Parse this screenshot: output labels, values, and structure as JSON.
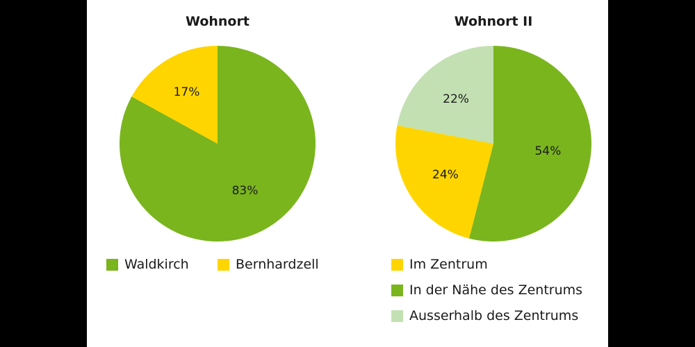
{
  "chart_data": [
    {
      "type": "pie",
      "title": "Wohnort",
      "slices": [
        {
          "label": "Waldkirch",
          "value": 83,
          "value_label": "83%",
          "color": "#7ab51d"
        },
        {
          "label": "Bernhardzell",
          "value": 17,
          "value_label": "17%",
          "color": "#ffd500"
        }
      ],
      "legend": "bottom"
    },
    {
      "type": "pie",
      "title": "Wohnort II",
      "slices": [
        {
          "label": "In der Nähe des Zentrums",
          "value": 54,
          "value_label": "54%",
          "color": "#7ab51d"
        },
        {
          "label": "Im Zentrum",
          "value": 24,
          "value_label": "24%",
          "color": "#ffd500"
        },
        {
          "label": "Ausserhalb des Zentrums",
          "value": 22,
          "value_label": "22%",
          "color": "#c3e0b2"
        }
      ],
      "legend_order": [
        "Im Zentrum",
        "In der Nähe des Zentrums",
        "Ausserhalb des Zentrums"
      ],
      "legend": "bottom"
    }
  ]
}
